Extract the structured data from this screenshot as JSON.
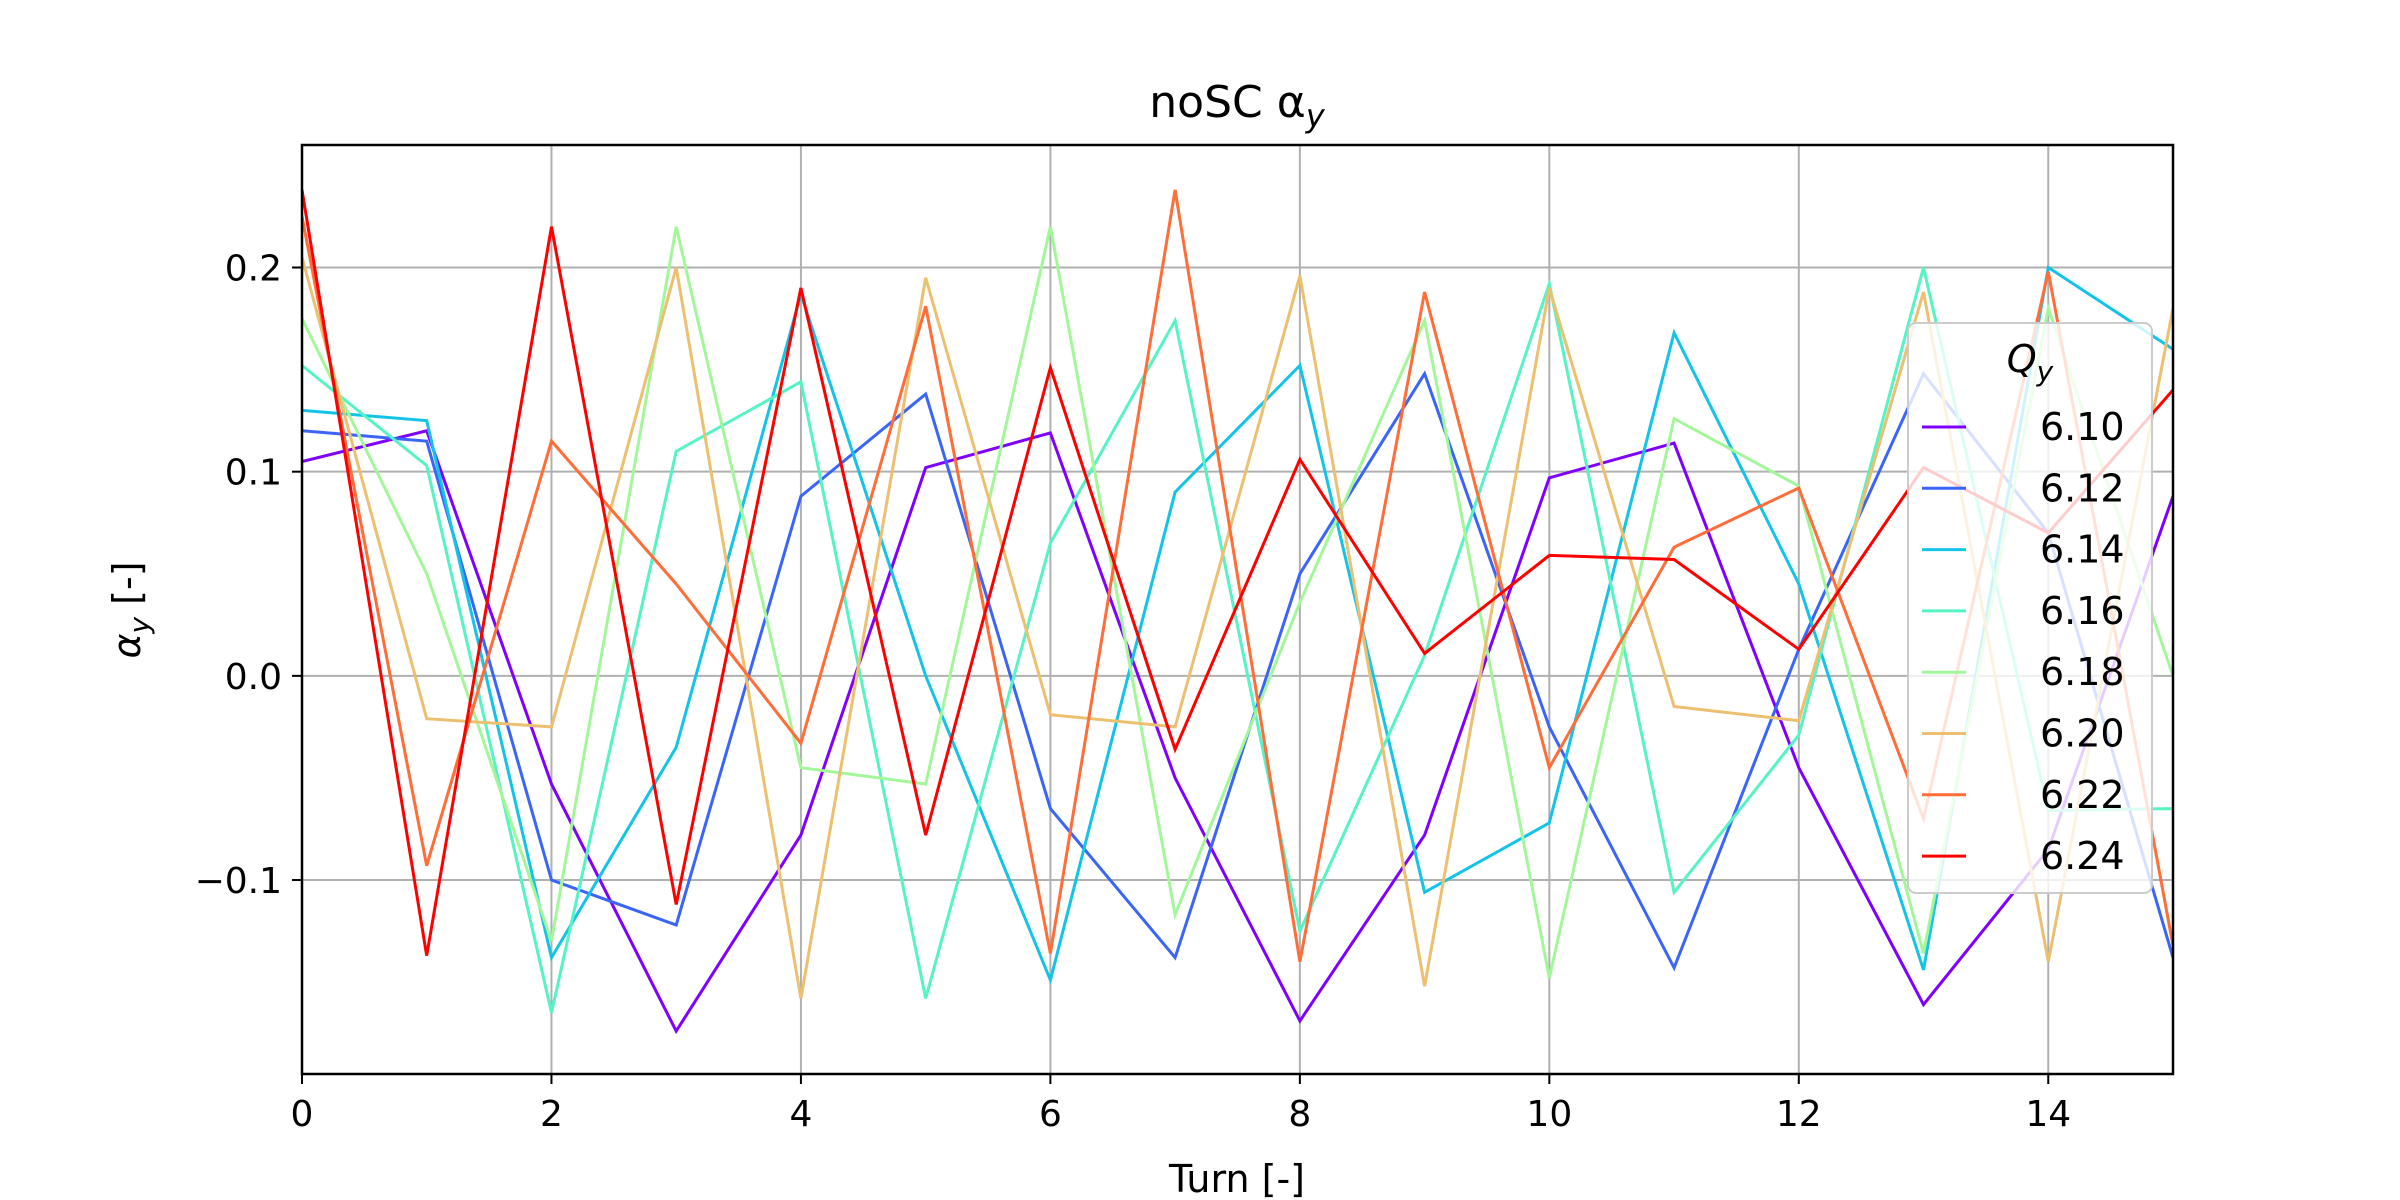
{
  "chart_data": {
    "type": "line",
    "title": "noSC α",
    "title_subscript": "y",
    "xlabel": "Turn [-]",
    "ylabel": "α",
    "ylabel_subscript": "y",
    "ylabel_suffix": " [-]",
    "xlim": [
      0,
      15
    ],
    "ylim": [
      -0.195,
      0.26
    ],
    "xticks": [
      0,
      2,
      4,
      6,
      8,
      10,
      12,
      14
    ],
    "xtick_labels": [
      "0",
      "2",
      "4",
      "6",
      "8",
      "10",
      "12",
      "14"
    ],
    "yticks": [
      -0.1,
      0.0,
      0.1,
      0.2
    ],
    "ytick_labels": [
      "−0.1",
      "0.0",
      "0.1",
      "0.2"
    ],
    "grid": true,
    "legend": {
      "title": "Q",
      "title_subscript": "y",
      "placement": "right"
    },
    "x": [
      0,
      1,
      2,
      3,
      4,
      5,
      6,
      7,
      8,
      9,
      10,
      11,
      12,
      13,
      14,
      15
    ],
    "series": [
      {
        "name": "6.10",
        "color": "#8000ff",
        "values": [
          0.105,
          0.12,
          -0.053,
          -0.174,
          -0.078,
          0.102,
          0.119,
          -0.05,
          -0.169,
          -0.078,
          0.097,
          0.114,
          -0.045,
          -0.161,
          -0.085,
          0.088
        ]
      },
      {
        "name": "6.12",
        "color": "#3a65f8",
        "values": [
          0.12,
          0.115,
          -0.1,
          -0.122,
          0.088,
          0.138,
          -0.065,
          -0.138,
          0.05,
          0.148,
          -0.025,
          -0.143,
          0.013,
          0.148,
          0.07,
          -0.138
        ]
      },
      {
        "name": "6.14",
        "color": "#13c4e6",
        "values": [
          0.13,
          0.125,
          -0.138,
          -0.035,
          0.187,
          0.0,
          -0.149,
          0.09,
          0.152,
          -0.106,
          -0.072,
          0.168,
          0.045,
          -0.144,
          0.2,
          0.16
        ]
      },
      {
        "name": "6.16",
        "color": "#56f3c5",
        "values": [
          0.152,
          0.103,
          -0.165,
          0.11,
          0.144,
          -0.158,
          0.065,
          0.174,
          -0.125,
          0.01,
          0.192,
          -0.106,
          -0.029,
          0.2,
          -0.066,
          -0.065
        ]
      },
      {
        "name": "6.18",
        "color": "#a3f79a",
        "values": [
          0.175,
          0.05,
          -0.13,
          0.22,
          -0.045,
          -0.053,
          0.22,
          -0.117,
          0.036,
          0.174,
          -0.148,
          0.126,
          0.093,
          -0.136,
          0.18,
          0.0
        ]
      },
      {
        "name": "6.20",
        "color": "#ecc070",
        "values": [
          0.205,
          -0.021,
          -0.025,
          0.2,
          -0.158,
          0.195,
          -0.019,
          -0.025,
          0.196,
          -0.152,
          0.19,
          -0.015,
          -0.022,
          0.188,
          -0.14,
          0.18
        ]
      },
      {
        "name": "6.22",
        "color": "#ff6d38",
        "values": [
          0.225,
          -0.093,
          0.115,
          0.045,
          -0.033,
          0.181,
          -0.136,
          0.238,
          -0.14,
          0.188,
          -0.045,
          0.063,
          0.092,
          -0.07,
          0.198,
          -0.132
        ]
      },
      {
        "name": "6.24",
        "color": "#ff0000",
        "values": [
          0.238,
          -0.137,
          0.22,
          -0.112,
          0.19,
          -0.078,
          0.151,
          -0.036,
          0.106,
          0.011,
          0.059,
          0.057,
          0.013,
          0.102,
          0.07,
          0.14
        ]
      }
    ]
  }
}
